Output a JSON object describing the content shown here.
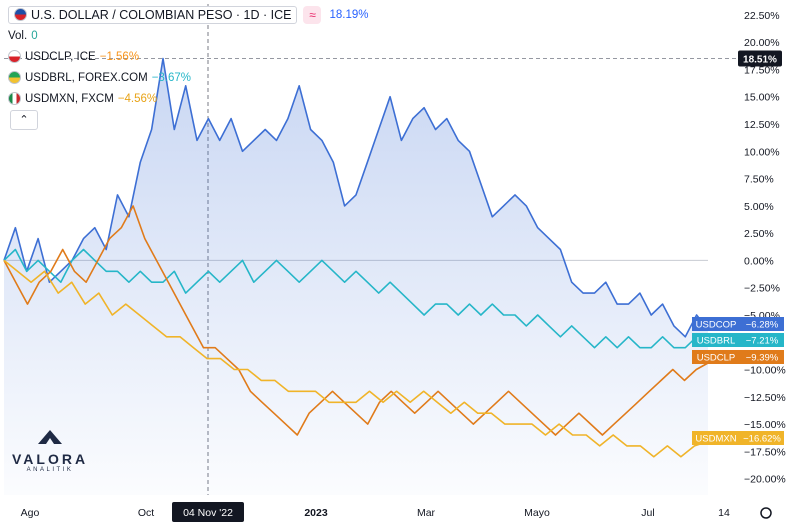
{
  "legend": {
    "main_title": "U.S. DOLLAR / COLOMBIAN PESO · 1D · ICE",
    "main_change": "18.19%",
    "vol_label": "Vol.",
    "vol_value": "0",
    "series": [
      {
        "label": "USDCLP, ICE",
        "change": "−1.56%",
        "color": "#f7931a",
        "flag": "cl"
      },
      {
        "label": "USDBRL, FOREX.COM",
        "change": "−3.67%",
        "color": "#26b6c8",
        "flag": "br"
      },
      {
        "label": "USDMXN, FXCM",
        "change": "−4.56%",
        "color": "#e8a317",
        "flag": "mx"
      }
    ],
    "collapse_glyph": "⌃",
    "compare_glyph": "≈"
  },
  "logo": {
    "name": "VALORA",
    "sub": "ANALITIK"
  },
  "chart_data": {
    "type": "line",
    "x_labels": [
      "Ago",
      "Oct",
      "04 Nov '22",
      "2023",
      "Mar",
      "Mayo",
      "Jul",
      "14"
    ],
    "y_ticks": [
      "22.50%",
      "20.00%",
      "17.50%",
      "15.00%",
      "12.50%",
      "10.00%",
      "7.50%",
      "5.00%",
      "2.50%",
      "0.00%",
      "−2.50%",
      "−5.00%",
      "−7.50%",
      "−10.00%",
      "−12.50%",
      "−15.00%",
      "−17.50%",
      "−20.00%"
    ],
    "ylim": [
      -21.5,
      23.5
    ],
    "crosshair_label": "04 Nov '22",
    "high_marker": {
      "value": 18.51,
      "label": "18.51%"
    },
    "series": [
      {
        "name": "USDCOP",
        "color": "#3d6fd4",
        "end_label": "−6.28%",
        "fill": true,
        "values": [
          0,
          3,
          -1,
          2,
          -2,
          -1,
          0,
          2,
          3,
          1,
          6,
          4,
          9,
          12,
          18.5,
          12,
          16,
          11,
          13,
          11,
          13,
          10,
          11,
          12,
          11,
          13,
          16,
          12,
          11,
          9,
          5,
          6,
          9,
          12,
          15,
          11,
          13,
          14,
          12,
          13,
          11,
          10,
          7,
          4,
          5,
          6,
          5,
          3,
          2,
          1,
          -2,
          -3,
          -3,
          -2,
          -4,
          -4,
          -3,
          -5,
          -4,
          -6,
          -7,
          -5,
          -6.3
        ]
      },
      {
        "name": "USDBRL",
        "color": "#26b6c8",
        "end_label": "−7.21%",
        "fill": false,
        "values": [
          0,
          1,
          -1,
          0,
          -1,
          -2,
          0,
          1,
          0,
          -1,
          -1,
          -2,
          -1,
          -2,
          -2,
          -1,
          -3,
          -2,
          -1,
          -2,
          -1,
          0,
          -2,
          -1,
          0,
          -1,
          -2,
          -1,
          0,
          -1,
          -2,
          -1,
          -2,
          -3,
          -2,
          -3,
          -4,
          -5,
          -4,
          -4,
          -5,
          -4,
          -5,
          -4,
          -5,
          -5,
          -6,
          -5,
          -6,
          -7,
          -6,
          -7,
          -8,
          -7,
          -8,
          -7,
          -8,
          -8,
          -7,
          -8,
          -8,
          -7,
          -7.2
        ]
      },
      {
        "name": "USDCLP",
        "color": "#e07b1a",
        "end_label": "−9.39%",
        "fill": false,
        "values": [
          0,
          -2,
          -4,
          -2,
          -1,
          1,
          -1,
          -2,
          0,
          2,
          3,
          5,
          2,
          0,
          -2,
          -4,
          -6,
          -8,
          -8,
          -9,
          -10,
          -12,
          -13,
          -14,
          -15,
          -16,
          -14,
          -13,
          -12,
          -13,
          -14,
          -15,
          -13,
          -12,
          -13,
          -14,
          -13,
          -12,
          -13,
          -14,
          -15,
          -14,
          -13,
          -12,
          -13,
          -14,
          -15,
          -16,
          -15,
          -14,
          -15,
          -16,
          -15,
          -14,
          -13,
          -12,
          -11,
          -10,
          -11,
          -10,
          -9.4
        ]
      },
      {
        "name": "USDMXN",
        "color": "#f0b429",
        "end_label": "−16.62%",
        "fill": false,
        "values": [
          0,
          -1,
          -2,
          -1,
          -3,
          -2,
          -4,
          -3,
          -5,
          -4,
          -5,
          -6,
          -7,
          -7,
          -8,
          -9,
          -9,
          -10,
          -10,
          -11,
          -11,
          -12,
          -12,
          -12,
          -13,
          -13,
          -13,
          -12,
          -13,
          -12,
          -13,
          -12,
          -13,
          -14,
          -13,
          -14,
          -14,
          -15,
          -15,
          -15,
          -16,
          -15,
          -16,
          -16,
          -17,
          -16,
          -17,
          -17,
          -18,
          -17,
          -18,
          -17,
          -16.6
        ]
      }
    ]
  }
}
